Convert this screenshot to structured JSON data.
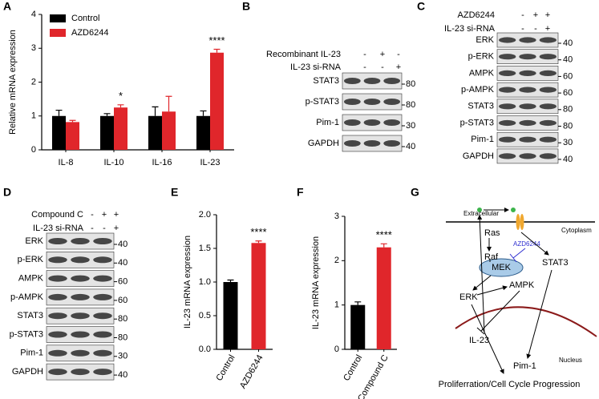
{
  "panel_labels": [
    "A",
    "B",
    "C",
    "D",
    "E",
    "F",
    "G"
  ],
  "chart_data": [
    {
      "type": "bar",
      "ylabel": "Relative mRNA expression",
      "categories": [
        "IL-8",
        "IL-10",
        "IL-16",
        "IL-23"
      ],
      "series": [
        {
          "name": "Control",
          "color": "#000000",
          "values": [
            1.0,
            1.0,
            1.0,
            1.0
          ],
          "errors": [
            0.17,
            0.07,
            0.27,
            0.15
          ]
        },
        {
          "name": "AZD6244",
          "color": "#e0262b",
          "values": [
            0.82,
            1.25,
            1.13,
            2.87
          ],
          "errors": [
            0.05,
            0.08,
            0.45,
            0.1
          ]
        }
      ],
      "annotations": [
        null,
        "*",
        null,
        "****"
      ],
      "ylim": [
        0,
        4
      ],
      "yticks": [
        0,
        1,
        2,
        3,
        4
      ],
      "legend": "upper-left"
    },
    {
      "type": "bar",
      "ylabel": "IL-23 mRNA expression",
      "categories": [
        "Control",
        "AZD6244"
      ],
      "values": [
        1.0,
        1.58
      ],
      "errors": [
        0.03,
        0.03
      ],
      "colors": [
        "#000000",
        "#e0262b"
      ],
      "annotations": [
        null,
        "****"
      ],
      "ylim": [
        0,
        2
      ],
      "yticks": [
        {
          "value": 0,
          "label": "0.0"
        },
        0.5,
        {
          "value": 1,
          "label": "1.0"
        },
        1.5,
        {
          "value": 2,
          "label": "2.0"
        }
      ]
    },
    {
      "type": "bar",
      "ylabel": "IL-23 mRNA expression",
      "categories": [
        "Control",
        "Compound C"
      ],
      "values": [
        1.0,
        2.3
      ],
      "errors": [
        0.07,
        0.08
      ],
      "colors": [
        "#000000",
        "#e0262b"
      ],
      "annotations": [
        null,
        "****"
      ],
      "ylim": [
        0,
        3
      ],
      "yticks": [
        0,
        1,
        2,
        3
      ]
    }
  ],
  "blots": [
    {
      "treatments": [
        {
          "name": "Recombinant IL-23",
          "signs": [
            "-",
            "+",
            "-"
          ]
        },
        {
          "name": "IL-23 si-RNA",
          "signs": [
            "-",
            "-",
            "+"
          ]
        }
      ],
      "bands": [
        {
          "name": "STAT3",
          "marker": "80"
        },
        {
          "name": "p-STAT3",
          "marker": "80"
        },
        {
          "name": "Pim-1",
          "marker": "30"
        },
        {
          "name": "GAPDH",
          "marker": "40"
        }
      ]
    },
    {
      "treatments": [
        {
          "name": "AZD6244",
          "signs": [
            "-",
            "+",
            "+"
          ]
        },
        {
          "name": "IL-23 si-RNA",
          "signs": [
            "-",
            "-",
            "+"
          ]
        }
      ],
      "bands": [
        {
          "name": "ERK",
          "marker": "40"
        },
        {
          "name": "p-ERK",
          "marker": "40"
        },
        {
          "name": "AMPK",
          "marker": "60"
        },
        {
          "name": "p-AMPK",
          "marker": "60"
        },
        {
          "name": "STAT3",
          "marker": "80"
        },
        {
          "name": "p-STAT3",
          "marker": "80"
        },
        {
          "name": "Pim-1",
          "marker": "30"
        },
        {
          "name": "GAPDH",
          "marker": "40"
        }
      ]
    },
    {
      "treatments": [
        {
          "name": "Compound C",
          "signs": [
            "-",
            "+",
            "+"
          ]
        },
        {
          "name": "IL-23 si-RNA",
          "signs": [
            "-",
            "-",
            "+"
          ]
        }
      ],
      "bands": [
        {
          "name": "ERK",
          "marker": "40"
        },
        {
          "name": "p-ERK",
          "marker": "40"
        },
        {
          "name": "AMPK",
          "marker": "60"
        },
        {
          "name": "p-AMPK",
          "marker": "60"
        },
        {
          "name": "STAT3",
          "marker": "80"
        },
        {
          "name": "p-STAT3",
          "marker": "80"
        },
        {
          "name": "Pim-1",
          "marker": "30"
        },
        {
          "name": "GAPDH",
          "marker": "40"
        }
      ]
    }
  ],
  "diagram": {
    "extracellular": "Extracellular",
    "cytoplasm": "Cytoplasm",
    "ras": "Ras",
    "raf": "Raf",
    "inhibitor": "AZD6244",
    "mek": "MEK",
    "stat3": "STAT3",
    "erk": "ERK",
    "ampk": "AMPK",
    "il23": "IL-23",
    "pim1": "Pim-1",
    "nucleus": "Nucleus",
    "outcome": "Proliferration/Cell Cycle Progression"
  }
}
